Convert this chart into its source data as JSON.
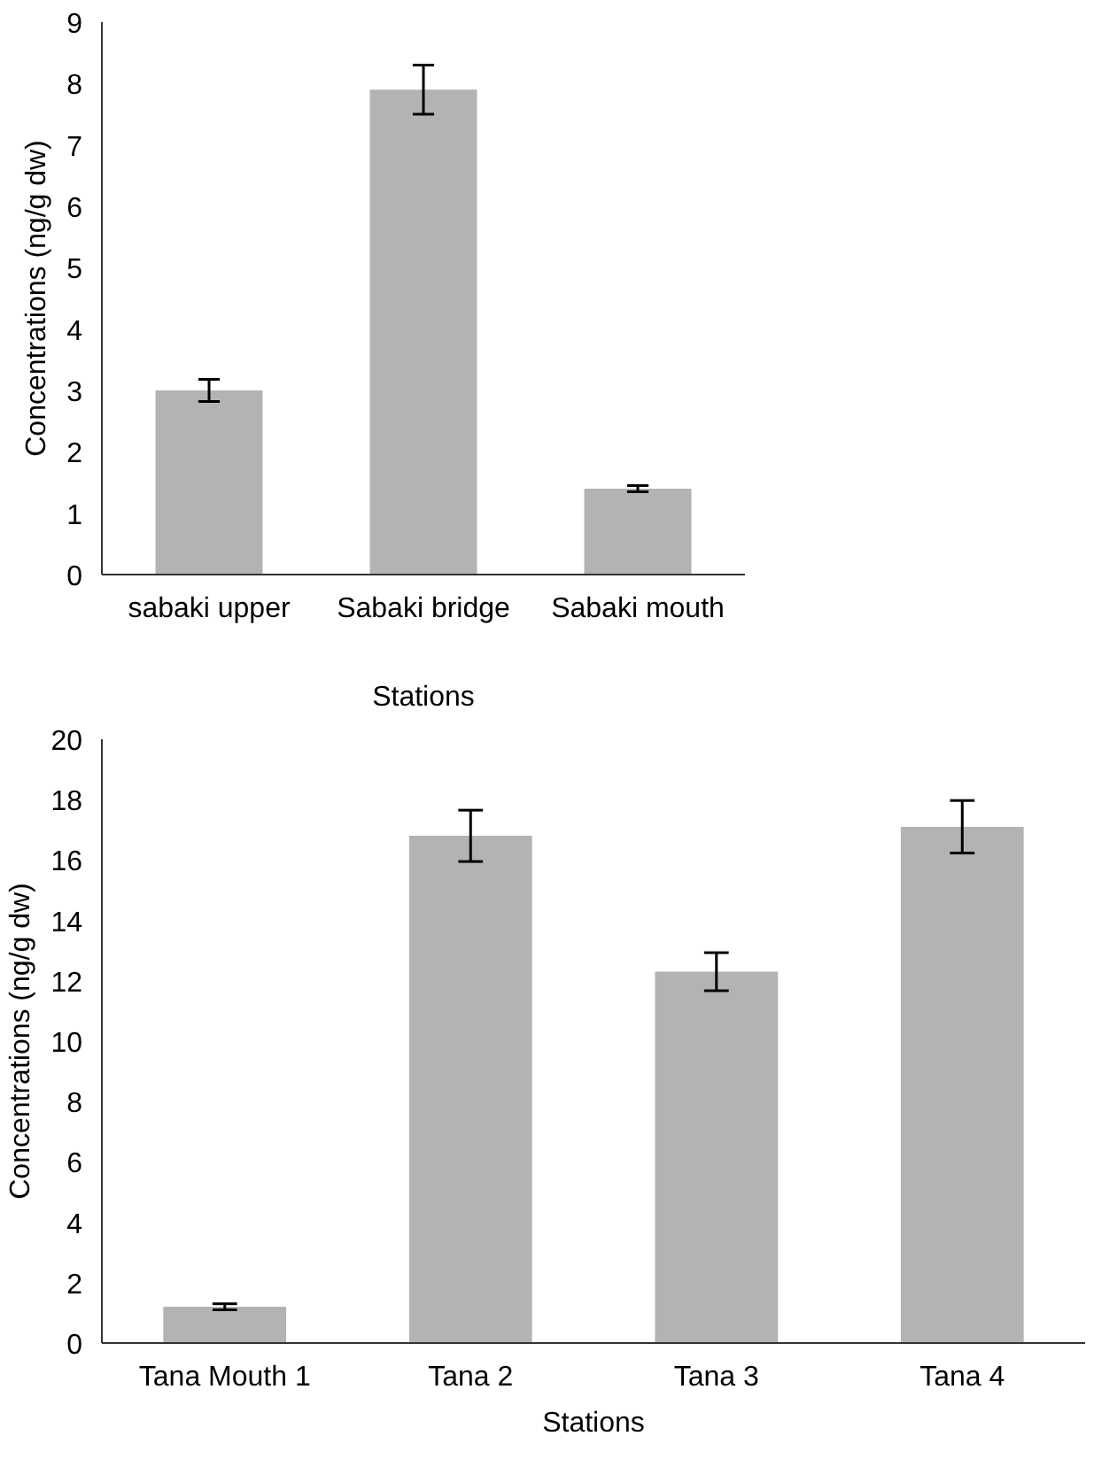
{
  "chart_data": [
    {
      "type": "bar",
      "xlabel": "Stations",
      "ylabel": "Concentrations (ng/g dw)",
      "categories": [
        "sabaki upper",
        "Sabaki bridge",
        "Sabaki mouth"
      ],
      "values": [
        3.0,
        7.9,
        1.4
      ],
      "errors": [
        0.18,
        0.4,
        0.05
      ],
      "color": "#b3b3b3",
      "ylim": [
        0,
        9
      ],
      "yticks": [
        0,
        1,
        2,
        3,
        4,
        5,
        6,
        7,
        8,
        9
      ],
      "grid": false
    },
    {
      "type": "bar",
      "xlabel": "Stations",
      "ylabel": "Concentrations (ng/g dw)",
      "categories": [
        "Tana Mouth 1",
        "Tana 2",
        "Tana 3",
        "Tana 4"
      ],
      "values": [
        1.2,
        16.8,
        12.3,
        17.1
      ],
      "errors": [
        0.1,
        0.85,
        0.63,
        0.87
      ],
      "color": "#b3b3b3",
      "ylim": [
        0,
        20
      ],
      "yticks": [
        0,
        2,
        4,
        6,
        8,
        10,
        12,
        14,
        16,
        18,
        20
      ],
      "grid": false
    }
  ]
}
